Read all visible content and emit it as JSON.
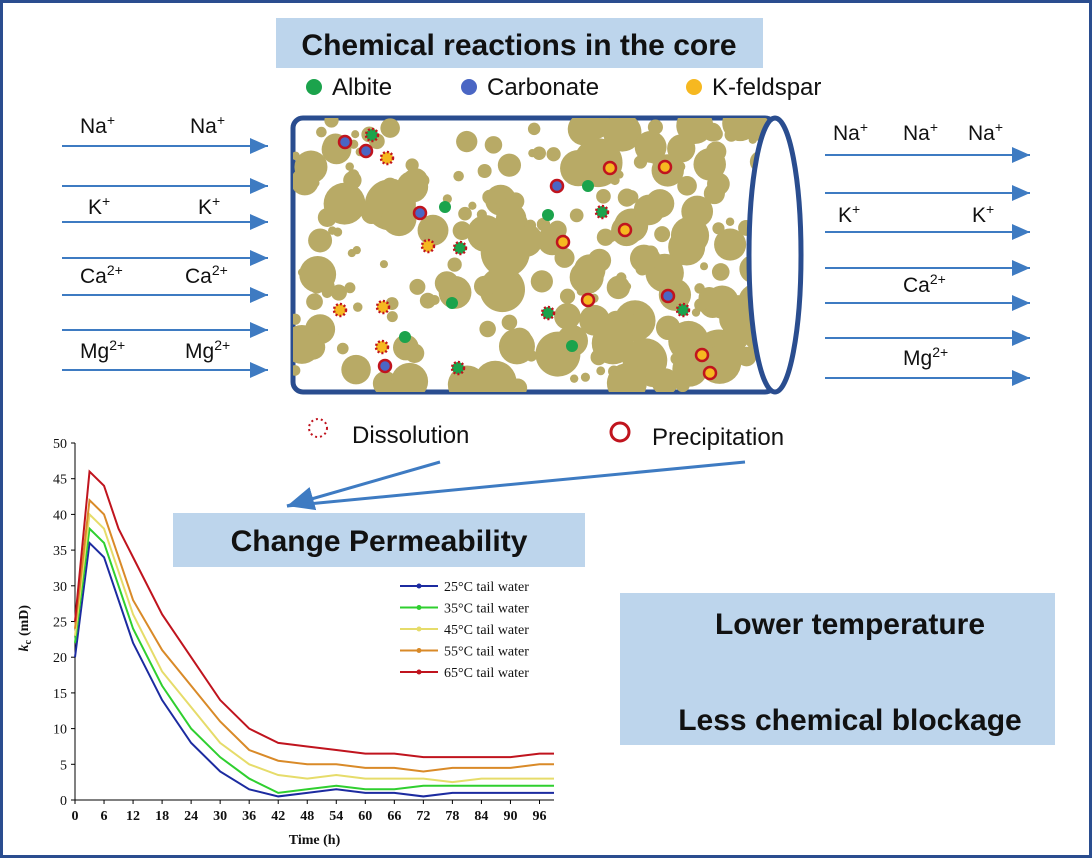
{
  "header": {
    "title": "Chemical reactions in the core"
  },
  "minerals": [
    {
      "label": "Albite",
      "color": "#1ba34c"
    },
    {
      "label": "Carbonate",
      "color": "#4a66c4"
    },
    {
      "label": "K-feldspar",
      "color": "#f6b820"
    }
  ],
  "inflow": [
    [
      {
        "symbol": "Na",
        "charge": "+"
      },
      {
        "symbol": "Na",
        "charge": "+"
      }
    ],
    [
      {
        "symbol": "K",
        "charge": "+"
      },
      {
        "symbol": "K",
        "charge": "+"
      }
    ],
    [
      {
        "symbol": "Ca",
        "charge": "2+"
      },
      {
        "symbol": "Ca",
        "charge": "2+"
      }
    ],
    [
      {
        "symbol": "Mg",
        "charge": "2+"
      },
      {
        "symbol": "Mg",
        "charge": "2+"
      }
    ]
  ],
  "outflow": [
    [
      {
        "symbol": "Na",
        "charge": "+"
      },
      {
        "symbol": "Na",
        "charge": "+"
      },
      {
        "symbol": "Na",
        "charge": "+"
      }
    ],
    [
      {
        "symbol": "K",
        "charge": "+"
      },
      {
        "symbol": "K",
        "charge": "+"
      }
    ],
    [
      {
        "symbol": "Ca",
        "charge": "2+"
      }
    ],
    [
      {
        "symbol": "Mg",
        "charge": "2+"
      }
    ]
  ],
  "processes": {
    "dissolution": "Dissolution",
    "precipitation": "Precipitation"
  },
  "result": "Change Permeability",
  "conclusion": [
    "Lower temperature",
    "Less chemical blockage"
  ],
  "chart_data": {
    "type": "line",
    "x_label": "Time (h)",
    "y_label": {
      "main": "k",
      "sub": "c",
      "unit": "(mD)"
    },
    "x": [
      0,
      3,
      6,
      9,
      12,
      18,
      24,
      30,
      36,
      42,
      48,
      54,
      60,
      66,
      72,
      78,
      84,
      90,
      96,
      99
    ],
    "xlim": [
      0,
      99
    ],
    "xticks": [
      0,
      6,
      12,
      18,
      24,
      30,
      36,
      42,
      48,
      54,
      60,
      66,
      72,
      78,
      84,
      90,
      96
    ],
    "ylim": [
      0,
      50
    ],
    "yticks": [
      0,
      5,
      10,
      15,
      20,
      25,
      30,
      35,
      40,
      45,
      50
    ],
    "series": [
      {
        "name": "25°C tail water",
        "color": "#1c2ba0",
        "values": [
          20,
          36,
          34,
          28,
          22,
          14,
          8,
          4,
          1.5,
          0.5,
          1,
          1.5,
          1,
          1,
          0.5,
          1,
          1,
          1,
          1,
          1
        ]
      },
      {
        "name": "35°C tail water",
        "color": "#2fcf2f",
        "values": [
          22,
          38,
          36,
          30,
          24,
          16,
          10,
          6,
          3,
          1,
          1.5,
          2,
          1.5,
          1.5,
          2,
          2,
          2,
          2,
          2,
          2
        ]
      },
      {
        "name": "45°C tail water",
        "color": "#e6dc6a",
        "values": [
          23,
          40,
          38,
          32,
          26,
          18,
          13,
          8,
          5,
          3.5,
          3,
          3.5,
          3,
          3,
          3,
          2.5,
          3,
          3,
          3,
          3
        ]
      },
      {
        "name": "55°C tail water",
        "color": "#d98a28",
        "values": [
          24,
          42,
          40,
          34,
          28,
          21,
          16,
          11,
          7,
          5.5,
          5,
          5,
          4.5,
          4.5,
          4,
          4.5,
          4.5,
          4.5,
          5,
          5
        ]
      },
      {
        "name": "65°C tail water",
        "color": "#c0141e",
        "values": [
          25,
          46,
          44,
          38,
          34,
          26,
          20,
          14,
          10,
          8,
          7.5,
          7,
          6.5,
          6.5,
          6,
          6,
          6,
          6,
          6.5,
          6.5
        ]
      }
    ]
  }
}
